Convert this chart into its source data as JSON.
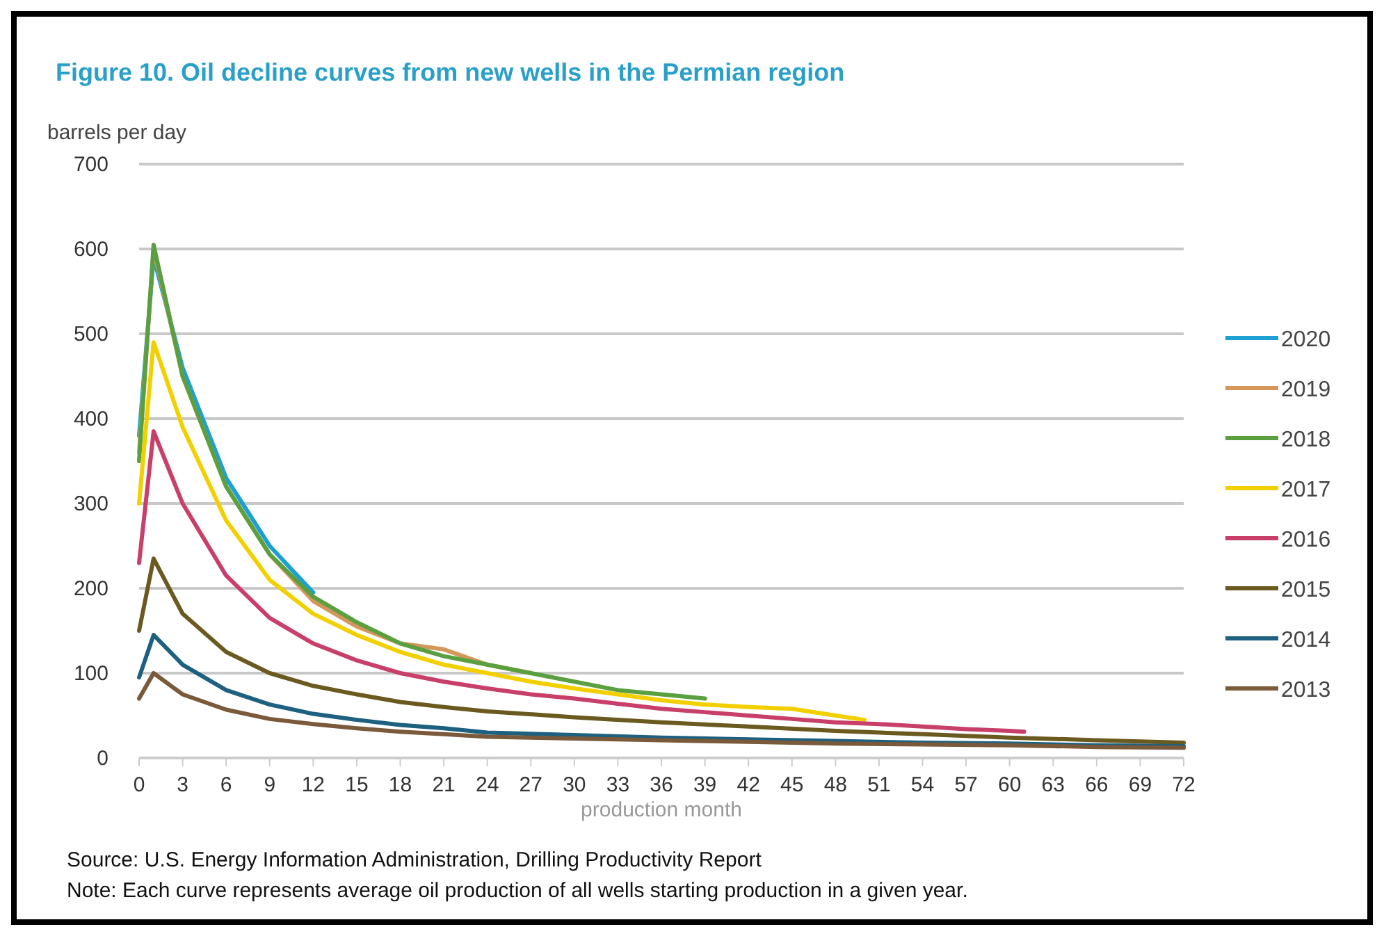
{
  "chart_data": {
    "type": "line",
    "title": "Figure 10. Oil decline curves from new wells in the Permian region",
    "ylabel": "barrels per day",
    "xlabel": "production month",
    "xlim": [
      0,
      72
    ],
    "xticks": [
      0,
      3,
      6,
      9,
      12,
      15,
      18,
      21,
      24,
      27,
      30,
      33,
      36,
      39,
      42,
      45,
      48,
      51,
      54,
      57,
      60,
      63,
      66,
      69,
      72
    ],
    "ylim": [
      0,
      700
    ],
    "yticks": [
      0,
      100,
      200,
      300,
      400,
      500,
      600,
      700
    ],
    "grid": "y",
    "legend": "right",
    "marker": "none",
    "line_style": "solid",
    "series": [
      {
        "name": "2020",
        "color": "#1e9fd4",
        "x": [
          0,
          1,
          3,
          6,
          9,
          12
        ],
        "values": [
          380,
          590,
          460,
          330,
          250,
          195
        ]
      },
      {
        "name": "2019",
        "color": "#d4975a",
        "x": [
          0,
          1,
          3,
          6,
          9,
          12,
          15,
          18,
          21,
          24,
          27
        ],
        "values": [
          360,
          600,
          450,
          320,
          240,
          185,
          155,
          135,
          128,
          110,
          100
        ]
      },
      {
        "name": "2018",
        "color": "#5aa040",
        "x": [
          0,
          1,
          3,
          6,
          9,
          12,
          15,
          18,
          21,
          24,
          27,
          30,
          33,
          36,
          39
        ],
        "values": [
          350,
          605,
          450,
          320,
          240,
          190,
          160,
          135,
          120,
          110,
          100,
          90,
          80,
          75,
          70
        ]
      },
      {
        "name": "2017",
        "color": "#f2d000",
        "x": [
          0,
          1,
          3,
          6,
          9,
          12,
          15,
          18,
          21,
          24,
          27,
          30,
          33,
          36,
          39,
          42,
          45,
          48,
          50
        ],
        "values": [
          300,
          490,
          390,
          280,
          210,
          170,
          145,
          125,
          110,
          100,
          90,
          82,
          75,
          68,
          63,
          60,
          58,
          50,
          45
        ]
      },
      {
        "name": "2016",
        "color": "#c8406a",
        "x": [
          0,
          1,
          3,
          6,
          9,
          12,
          15,
          18,
          21,
          24,
          27,
          30,
          33,
          36,
          39,
          42,
          45,
          48,
          51,
          54,
          57,
          60,
          61
        ],
        "values": [
          230,
          385,
          300,
          215,
          165,
          135,
          115,
          100,
          90,
          82,
          75,
          70,
          64,
          58,
          54,
          50,
          46,
          42,
          40,
          37,
          34,
          32,
          31
        ]
      },
      {
        "name": "2015",
        "color": "#6b5a20",
        "x": [
          0,
          1,
          3,
          6,
          9,
          12,
          15,
          18,
          21,
          24,
          30,
          36,
          42,
          48,
          54,
          60,
          66,
          72
        ],
        "values": [
          150,
          235,
          170,
          125,
          100,
          85,
          75,
          66,
          60,
          55,
          48,
          42,
          37,
          32,
          28,
          24,
          21,
          18
        ]
      },
      {
        "name": "2014",
        "color": "#1e6080",
        "x": [
          0,
          1,
          3,
          6,
          9,
          12,
          15,
          18,
          21,
          24,
          30,
          36,
          42,
          48,
          54,
          60,
          66,
          72
        ],
        "values": [
          95,
          145,
          110,
          80,
          63,
          52,
          45,
          39,
          35,
          30,
          27,
          24,
          22,
          20,
          18,
          17,
          15,
          14
        ]
      },
      {
        "name": "2013",
        "color": "#7a5a3a",
        "x": [
          0,
          1,
          3,
          6,
          9,
          12,
          15,
          18,
          21,
          24,
          30,
          36,
          42,
          48,
          54,
          60,
          66,
          72
        ],
        "values": [
          70,
          100,
          75,
          57,
          46,
          40,
          35,
          31,
          28,
          25,
          23,
          21,
          19,
          17,
          16,
          15,
          13,
          12
        ]
      }
    ],
    "annotations": [
      "Source: U.S. Energy Information Administration, Drilling Productivity Report",
      "Note: Each curve represents average oil production of all wells starting production in a given year."
    ]
  }
}
